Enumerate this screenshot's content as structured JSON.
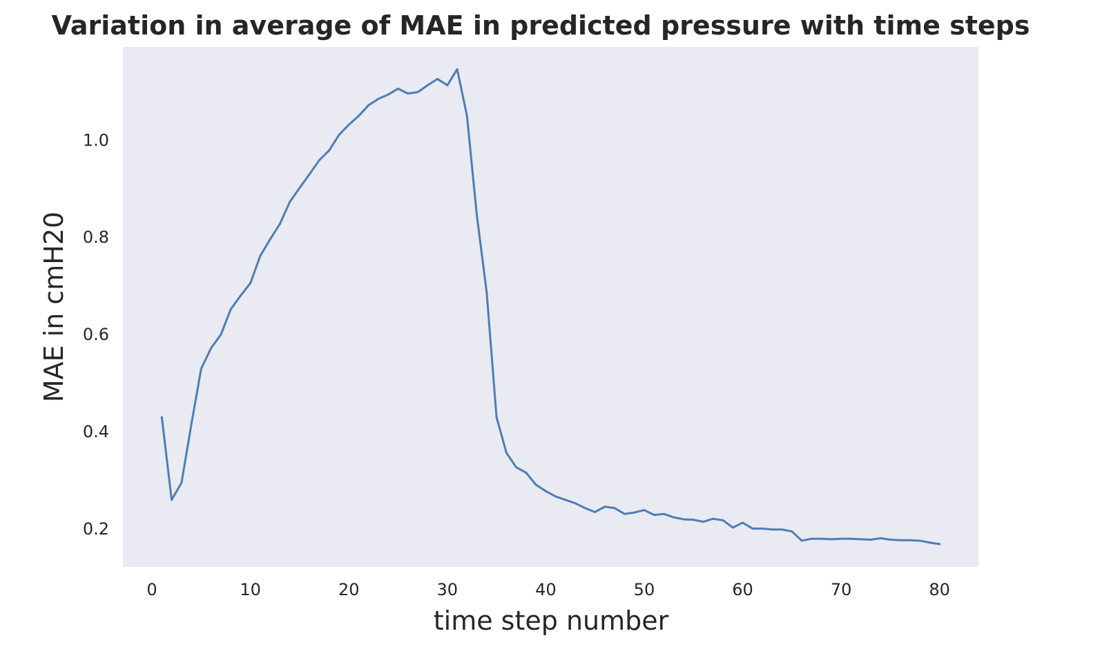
{
  "chart_data": {
    "type": "line",
    "title": "Variation in average of MAE in predicted pressure with time steps",
    "xlabel": "time step number",
    "ylabel": "MAE in cmH20",
    "xlim": [
      -2.95,
      83.95
    ],
    "ylim": [
      0.122,
      1.192
    ],
    "xticks": [
      0,
      10,
      20,
      30,
      40,
      50,
      60,
      70,
      80
    ],
    "xtick_labels": [
      "0",
      "10",
      "20",
      "30",
      "40",
      "50",
      "60",
      "70",
      "80"
    ],
    "yticks": [
      0.2,
      0.4,
      0.6,
      0.8,
      1.0
    ],
    "ytick_labels": [
      "0.2",
      "0.4",
      "0.6",
      "0.8",
      "1.0"
    ],
    "grid": false,
    "background_color": "#e9eaf2",
    "line_color": "#4c7db6",
    "series": [
      {
        "x": [
          1,
          2,
          3,
          4,
          5,
          6,
          7,
          8,
          9,
          10,
          11,
          12,
          13,
          14,
          15,
          16,
          17,
          18,
          19,
          20,
          21,
          22,
          23,
          24,
          25,
          26,
          27,
          28,
          29,
          30,
          31,
          32,
          33,
          34,
          35,
          36,
          37,
          38,
          39,
          40,
          41,
          42,
          43,
          44,
          45,
          46,
          47,
          48,
          49,
          50,
          51,
          52,
          53,
          54,
          55,
          56,
          57,
          58,
          59,
          60,
          61,
          62,
          63,
          64,
          65,
          66,
          67,
          68,
          69,
          70,
          71,
          72,
          73,
          74,
          75,
          76,
          77,
          78,
          79,
          80
        ],
        "y": [
          0.43,
          0.26,
          0.295,
          0.415,
          0.53,
          0.572,
          0.6,
          0.652,
          0.68,
          0.706,
          0.762,
          0.796,
          0.828,
          0.873,
          0.902,
          0.93,
          0.959,
          0.979,
          1.011,
          1.032,
          1.05,
          1.072,
          1.085,
          1.094,
          1.106,
          1.096,
          1.099,
          1.113,
          1.126,
          1.113,
          1.146,
          1.05,
          0.845,
          0.687,
          0.43,
          0.357,
          0.327,
          0.316,
          0.291,
          0.278,
          0.267,
          0.26,
          0.253,
          0.243,
          0.235,
          0.246,
          0.243,
          0.231,
          0.234,
          0.239,
          0.229,
          0.231,
          0.224,
          0.22,
          0.219,
          0.215,
          0.221,
          0.218,
          0.203,
          0.213,
          0.201,
          0.201,
          0.199,
          0.199,
          0.195,
          0.176,
          0.18,
          0.18,
          0.179,
          0.18,
          0.18,
          0.179,
          0.178,
          0.181,
          0.178,
          0.177,
          0.177,
          0.176,
          0.172,
          0.169
        ]
      }
    ]
  }
}
